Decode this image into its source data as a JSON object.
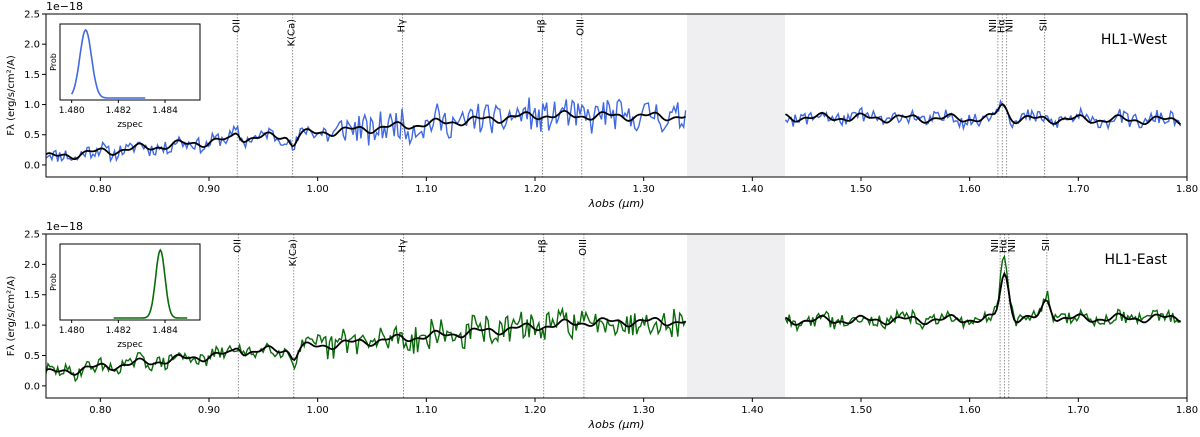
{
  "chart_data": [
    {
      "type": "line",
      "panel": "top",
      "exponent_label": "1e−18",
      "ylabel": "Fλ (erg/s/cm²/A)",
      "xlabel": "λobs (μm)",
      "xlim": [
        0.75,
        1.8
      ],
      "ylim": [
        -0.2,
        2.5
      ],
      "x_ticks": [
        "0.80",
        "0.90",
        "1.00",
        "1.10",
        "1.20",
        "1.30",
        "1.40",
        "1.50",
        "1.60",
        "1.70",
        "1.80"
      ],
      "y_ticks": [
        "0.0",
        "0.5",
        "1.0",
        "1.5",
        "2.0",
        "2.5"
      ],
      "object_label": "HL1-West",
      "object_color": "#4169e1",
      "gap_range": [
        1.34,
        1.43
      ],
      "lines": [
        {
          "name": "OII",
          "x": 0.926
        },
        {
          "name": "K(Ca)",
          "x": 0.977
        },
        {
          "name": "Hγ",
          "x": 1.078
        },
        {
          "name": "Hβ",
          "x": 1.207
        },
        {
          "name": "OIII",
          "x": 1.243
        },
        {
          "name": "NII",
          "x": 1.626
        },
        {
          "name": "Hα",
          "x": 1.63
        },
        {
          "name": "NII",
          "x": 1.634
        },
        {
          "name": "SII",
          "x": 1.669
        }
      ],
      "series": [
        {
          "name": "observed",
          "color": "#4169e1",
          "noise": 0.26,
          "seed": 11
        },
        {
          "name": "model",
          "color": "#000000"
        }
      ],
      "model": {
        "base_start": 0.12,
        "base_mid": 0.82,
        "mid_x": 1.2,
        "base_end": 0.74,
        "ha_peak": 0.25,
        "sii_peak": 0.0
      },
      "inset": {
        "xlabel": "zspec",
        "ylabel": "Prob",
        "xlim": [
          1.4795,
          1.4855
        ],
        "x_ticks": [
          "1.480",
          "1.482",
          "1.484"
        ],
        "peak_center": 1.4806,
        "peak_width": 0.00025,
        "support": [
          1.48,
          1.4832
        ],
        "color": "#4169e1"
      }
    },
    {
      "type": "line",
      "panel": "bottom",
      "exponent_label": "1e−18",
      "ylabel": "Fλ (erg/s/cm²/A)",
      "xlabel": "λobs (μm)",
      "xlim": [
        0.75,
        1.8
      ],
      "ylim": [
        -0.2,
        2.5
      ],
      "x_ticks": [
        "0.80",
        "0.90",
        "1.00",
        "1.10",
        "1.20",
        "1.30",
        "1.40",
        "1.50",
        "1.60",
        "1.70",
        "1.80"
      ],
      "y_ticks": [
        "0.0",
        "0.5",
        "1.0",
        "1.5",
        "2.0",
        "2.5"
      ],
      "object_label": "HL1-East",
      "object_color": "#0a6b0a",
      "gap_range": [
        1.34,
        1.43
      ],
      "lines": [
        {
          "name": "OII",
          "x": 0.927
        },
        {
          "name": "K(Ca)",
          "x": 0.978
        },
        {
          "name": "Hγ",
          "x": 1.079
        },
        {
          "name": "Hβ",
          "x": 1.208
        },
        {
          "name": "OIII",
          "x": 1.245
        },
        {
          "name": "NII",
          "x": 1.628
        },
        {
          "name": "Hα",
          "x": 1.632
        },
        {
          "name": "NII",
          "x": 1.636
        },
        {
          "name": "SII",
          "x": 1.671
        }
      ],
      "series": [
        {
          "name": "observed",
          "color": "#0a6b0a",
          "noise": 0.24,
          "seed": 29
        },
        {
          "name": "model",
          "color": "#000000"
        }
      ],
      "model": {
        "base_start": 0.2,
        "base_mid": 1.05,
        "mid_x": 1.25,
        "base_end": 1.12,
        "ha_peak": 0.75,
        "sii_peak": 0.3
      },
      "inset": {
        "xlabel": "zspec",
        "ylabel": "Prob",
        "xlim": [
          1.4795,
          1.4855
        ],
        "x_ticks": [
          "1.480",
          "1.482",
          "1.484"
        ],
        "peak_center": 1.4838,
        "peak_width": 0.0002,
        "support": [
          1.4818,
          1.485
        ],
        "color": "#0a6b0a"
      }
    }
  ]
}
